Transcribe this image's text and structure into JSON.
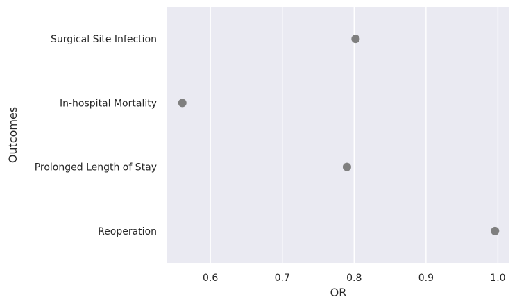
{
  "colors": {
    "plot_background": "#eaeaf2",
    "grid": "#ffffff",
    "marker": "#7f7f7f",
    "text": "#262626"
  },
  "chart_data": {
    "type": "scatter",
    "orientation": "horizontal",
    "title": "",
    "xlabel": "OR",
    "ylabel": "Outcomes",
    "categories": [
      "Surgical Site Infection",
      "In-hospital Mortality",
      "Prolonged Length of Stay",
      "Reoperation"
    ],
    "values": [
      0.802,
      0.561,
      0.79,
      0.996
    ],
    "xlim": [
      0.54,
      1.016
    ],
    "xticks": [
      0.6,
      0.7,
      0.8,
      0.9,
      1.0
    ],
    "xtick_labels": [
      "0.6",
      "0.7",
      "0.8",
      "0.9",
      "1.0"
    ],
    "grid": true,
    "grid_axis": "x",
    "legend": false
  }
}
